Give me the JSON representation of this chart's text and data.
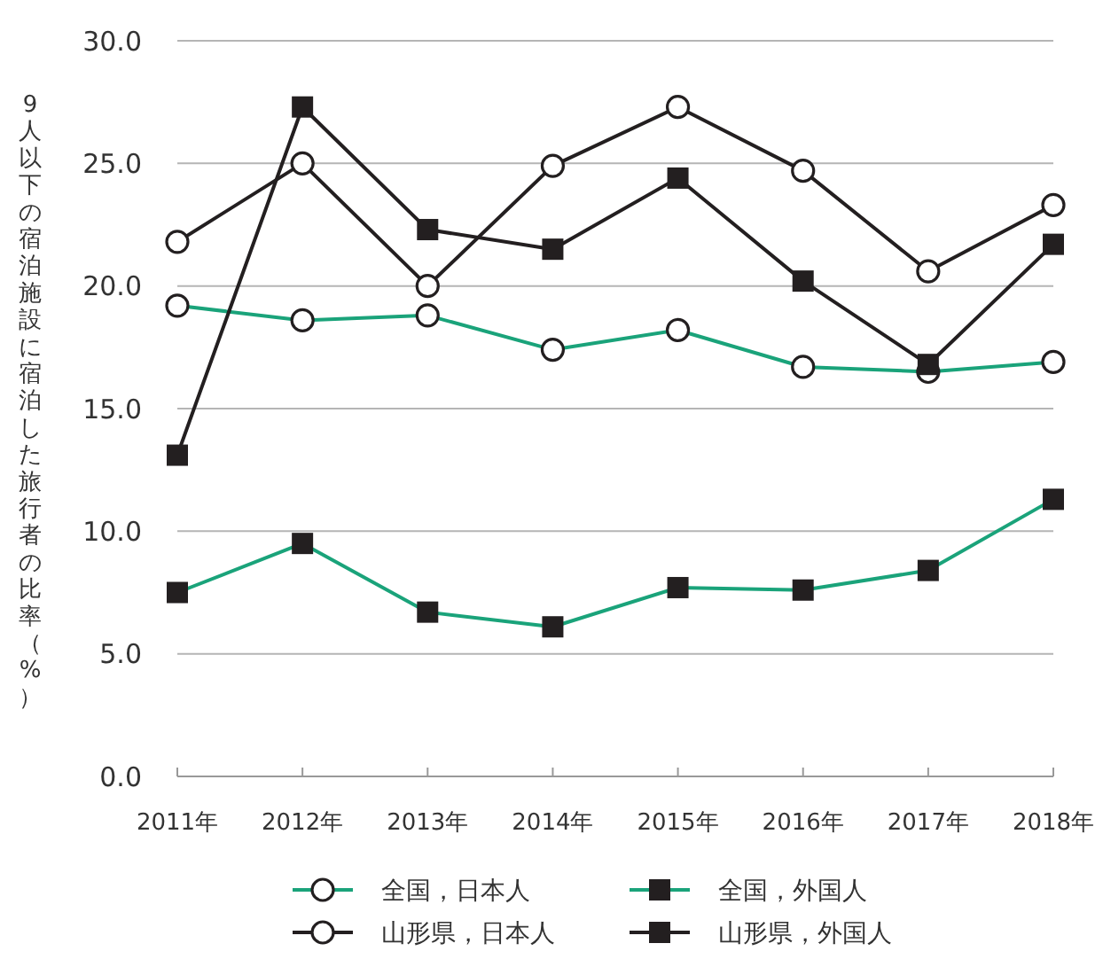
{
  "chart_data": {
    "type": "line",
    "ylabel": "9人以下の宿泊施設に宿泊した旅行者の比率（%）",
    "categories": [
      "2011年",
      "2012年",
      "2013年",
      "2014年",
      "2015年",
      "2016年",
      "2017年",
      "2018年"
    ],
    "series": [
      {
        "name": "全国，日本人",
        "color": "#1aa37a",
        "marker": "circle",
        "values": [
          19.2,
          18.6,
          18.8,
          17.4,
          18.2,
          16.7,
          16.5,
          16.9
        ]
      },
      {
        "name": "全国，外国人",
        "color": "#1aa37a",
        "marker": "square",
        "values": [
          7.5,
          9.5,
          6.7,
          6.1,
          7.7,
          7.6,
          8.4,
          11.3
        ]
      },
      {
        "name": "山形県，日本人",
        "color": "#231f20",
        "marker": "circle",
        "values": [
          21.8,
          25.0,
          20.0,
          24.9,
          27.3,
          24.7,
          20.6,
          23.3
        ]
      },
      {
        "name": "山形県，外国人",
        "color": "#231f20",
        "marker": "square",
        "values": [
          13.1,
          27.3,
          22.3,
          21.5,
          24.4,
          20.2,
          16.8,
          21.7
        ]
      }
    ],
    "ylim": [
      0,
      30
    ],
    "yticks": [
      {
        "value": 0,
        "label": "0.0"
      },
      {
        "value": 5,
        "label": "5.0"
      },
      {
        "value": 10,
        "label": "10.0"
      },
      {
        "value": 15,
        "label": "15.0"
      },
      {
        "value": 20,
        "label": "20.0"
      },
      {
        "value": 25,
        "label": "25.0"
      },
      {
        "value": 30,
        "label": "30.0"
      }
    ],
    "grid": "y",
    "legend": "bottom"
  }
}
